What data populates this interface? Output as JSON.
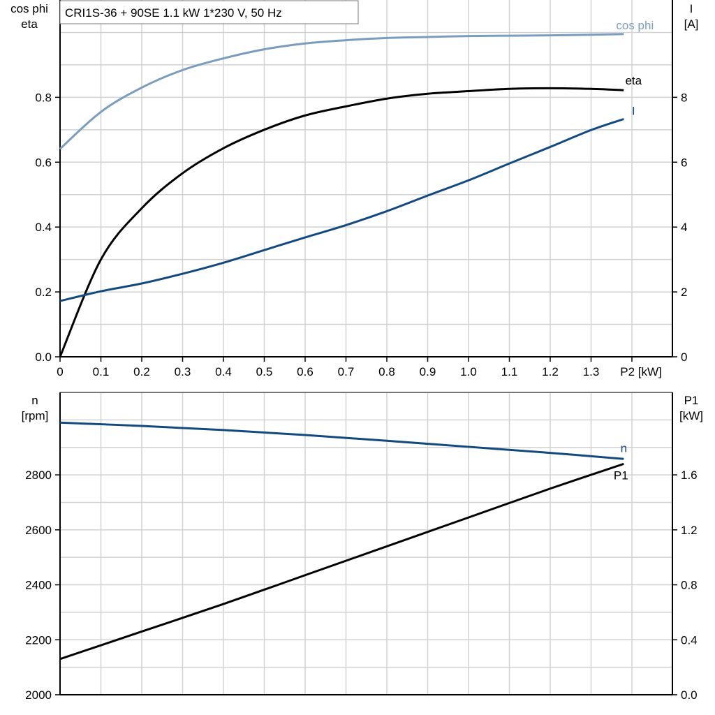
{
  "chart_data": [
    {
      "type": "line",
      "title": "CRI1S-36 + 90SE   1.1 kW   1*230 V, 50 Hz",
      "xlabel": "P2 [kW]",
      "ylabel_left": [
        "cos phi",
        "eta"
      ],
      "ylabel_right": [
        "I",
        "[A]"
      ],
      "xlim": [
        0,
        1.5
      ],
      "ylim_left": [
        0,
        1.1
      ],
      "ylim_right": [
        0,
        11
      ],
      "x_ticks": [
        "0",
        "0.1",
        "0.2",
        "0.3",
        "0.4",
        "0.5",
        "0.6",
        "0.7",
        "0.8",
        "0.9",
        "1.0",
        "1.1",
        "1.2",
        "1.3"
      ],
      "y_ticks_left": [
        "0.0",
        "0.2",
        "0.4",
        "0.6",
        "0.8"
      ],
      "y_ticks_right": [
        "0",
        "2",
        "4",
        "6",
        "8"
      ],
      "grid": true,
      "x": [
        0,
        0.1,
        0.2,
        0.3,
        0.4,
        0.5,
        0.6,
        0.7,
        0.8,
        0.9,
        1.0,
        1.1,
        1.2,
        1.3,
        1.38
      ],
      "series": [
        {
          "name": "cos phi",
          "axis": "left",
          "color": "#7a9cbd",
          "values": [
            0.641,
            0.755,
            0.83,
            0.884,
            0.92,
            0.948,
            0.966,
            0.976,
            0.983,
            0.986,
            0.989,
            0.99,
            0.991,
            0.993,
            0.995
          ]
        },
        {
          "name": "eta",
          "axis": "left",
          "color": "#000000",
          "values": [
            0.0,
            0.3,
            0.458,
            0.566,
            0.643,
            0.7,
            0.744,
            0.772,
            0.796,
            0.811,
            0.819,
            0.826,
            0.828,
            0.826,
            0.822
          ]
        },
        {
          "name": "I",
          "axis": "right",
          "color": "#124a80",
          "values": [
            1.72,
            2.02,
            2.26,
            2.56,
            2.9,
            3.29,
            3.68,
            4.06,
            4.49,
            4.97,
            5.44,
            5.96,
            6.47,
            6.99,
            7.33
          ]
        }
      ]
    },
    {
      "type": "line",
      "xlim": [
        0,
        1.5
      ],
      "ylabel_left": [
        "n",
        "[rpm]"
      ],
      "ylabel_right": [
        "P1",
        "[kW]"
      ],
      "ylim_left": [
        2000,
        3100
      ],
      "ylim_right": [
        0,
        2.2
      ],
      "y_ticks_left": [
        "2000",
        "2200",
        "2400",
        "2600",
        "2800"
      ],
      "y_ticks_right": [
        "0.0",
        "0.4",
        "0.8",
        "1.2",
        "1.6"
      ],
      "grid": true,
      "x": [
        0,
        0.2,
        0.4,
        0.6,
        0.8,
        1.0,
        1.2,
        1.38
      ],
      "series": [
        {
          "name": "n",
          "axis": "left",
          "color": "#124a80",
          "values": [
            2990,
            2978,
            2963,
            2945,
            2924,
            2902,
            2880,
            2858
          ]
        },
        {
          "name": "P1",
          "axis": "right",
          "color": "#000000",
          "values": [
            0.26,
            0.46,
            0.66,
            0.87,
            1.08,
            1.29,
            1.5,
            1.68
          ]
        }
      ]
    }
  ]
}
